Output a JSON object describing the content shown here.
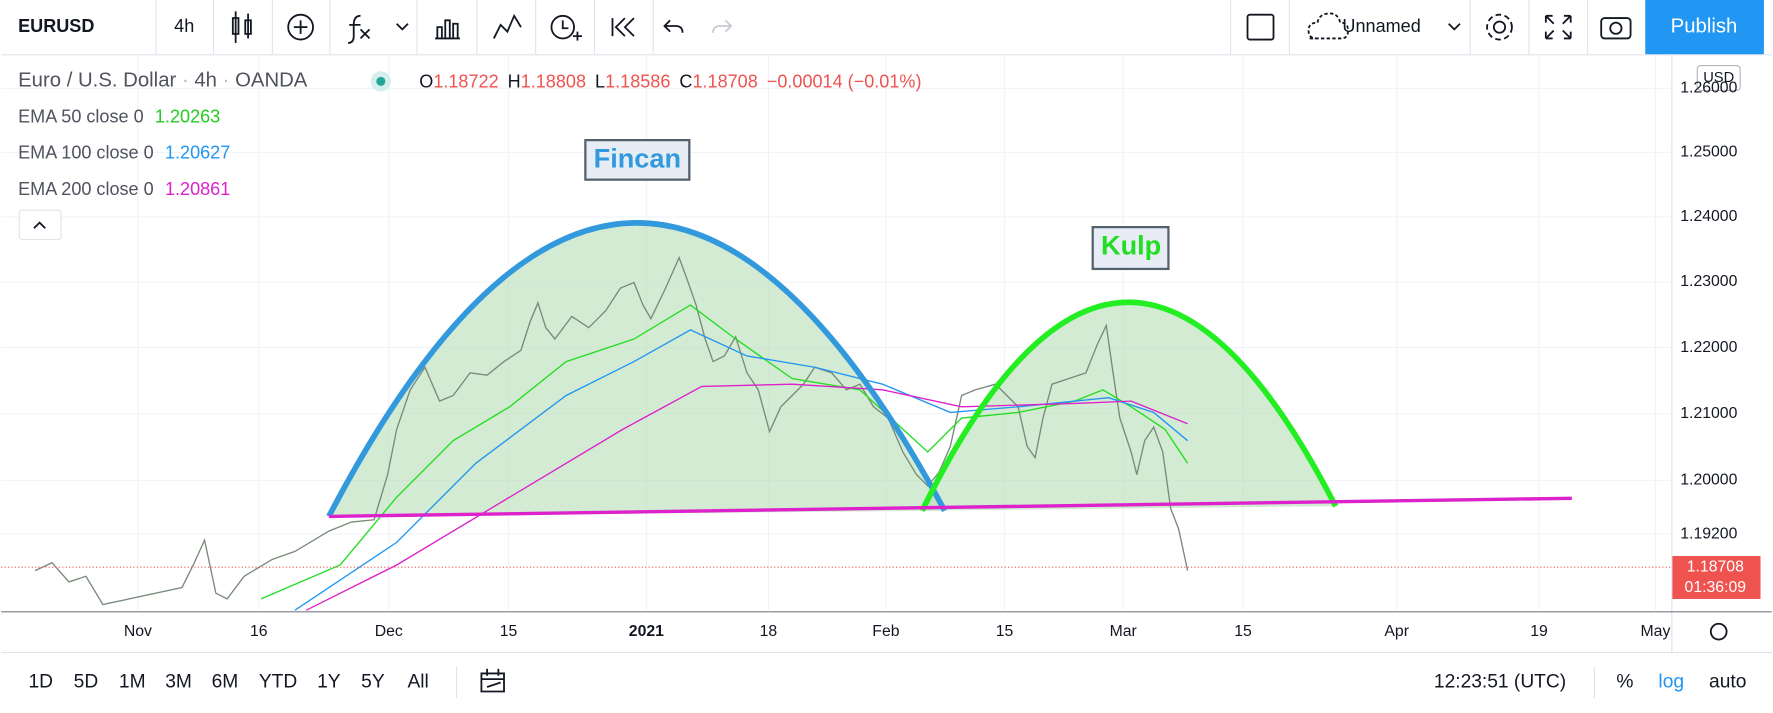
{
  "toolbar": {
    "symbol": "EURUSD",
    "interval": "4h",
    "layout_name": "Unnamed",
    "publish": "Publish"
  },
  "legend": {
    "symbol_name": "Euro / U.S. Dollar",
    "interval": "4h",
    "exchange": "OANDA",
    "ohlc": [
      {
        "label": "O",
        "value": 1.18722
      },
      {
        "label": "H",
        "value": 1.18808
      },
      {
        "label": "L",
        "value": 1.18586
      },
      {
        "label": "C",
        "value": 1.18708
      }
    ],
    "change": "−0.00014 (−0.01%)",
    "indicators": [
      {
        "name": "EMA 50 close 0",
        "value": 1.20263,
        "color": "#22cc22"
      },
      {
        "name": "EMA 100 close 0",
        "value": 1.20627,
        "color": "#2196f3"
      },
      {
        "name": "EMA 200 close 0",
        "value": 1.20861,
        "color": "#dd22cc"
      }
    ]
  },
  "chart_data": {
    "type": "candlestick",
    "log_scale": true,
    "currency": "USD",
    "ylim": [
      1.1806,
      1.2652
    ],
    "yticks": [
      {
        "value": 1.26,
        "label": "1.26000"
      },
      {
        "value": 1.25,
        "label": "1.25000"
      },
      {
        "value": 1.24,
        "label": "1.24000"
      },
      {
        "value": 1.23,
        "label": "1.23000"
      },
      {
        "value": 1.22,
        "label": "1.22000"
      },
      {
        "value": 1.21,
        "label": "1.21000"
      },
      {
        "value": 1.2,
        "label": "1.20000"
      },
      {
        "value": 1.192,
        "label": "1.19200"
      }
    ],
    "x_labels": [
      "Nov",
      "16",
      "Dec",
      "15",
      "2021",
      "18",
      "Feb",
      "15",
      "Mar",
      "15",
      "Apr",
      "19",
      "May"
    ],
    "last_price": 1.18708,
    "countdown": "01:36:09",
    "annotations": [
      {
        "text": "Fincan",
        "color": "#3399dd"
      },
      {
        "text": "Kulp",
        "color": "#22dd22"
      }
    ]
  },
  "bottom_bar": {
    "ranges": [
      "1D",
      "5D",
      "1M",
      "3M",
      "6M",
      "YTD",
      "1Y",
      "5Y",
      "All"
    ],
    "time": "12:23:51 (UTC)",
    "percent": "%",
    "log": "log",
    "auto": "auto"
  }
}
